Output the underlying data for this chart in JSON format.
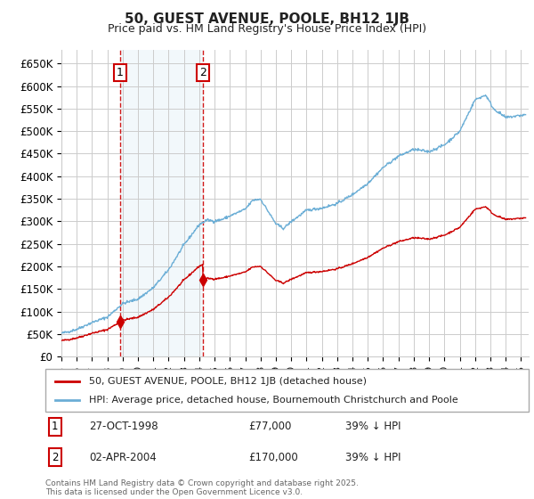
{
  "title": "50, GUEST AVENUE, POOLE, BH12 1JB",
  "subtitle": "Price paid vs. HM Land Registry's House Price Index (HPI)",
  "ylim": [
    0,
    680000
  ],
  "xlim_start": 1995.0,
  "xlim_end": 2025.5,
  "sale1_date": 1998.83,
  "sale1_price": 77000,
  "sale1_label": "1",
  "sale2_date": 2004.25,
  "sale2_price": 170000,
  "sale2_label": "2",
  "legend_line1": "50, GUEST AVENUE, POOLE, BH12 1JB (detached house)",
  "legend_line2": "HPI: Average price, detached house, Bournemouth Christchurch and Poole",
  "table_row1": [
    "1",
    "27-OCT-1998",
    "£77,000",
    "39% ↓ HPI"
  ],
  "table_row2": [
    "2",
    "02-APR-2004",
    "£170,000",
    "39% ↓ HPI"
  ],
  "footer": "Contains HM Land Registry data © Crown copyright and database right 2025.\nThis data is licensed under the Open Government Licence v3.0.",
  "hpi_color": "#6baed6",
  "price_color": "#cc0000",
  "grid_color": "#cccccc",
  "bg_color": "#ffffff",
  "annotation_box_color": "#cc0000",
  "shade_color": "#d6e8f5",
  "dashed_color": "#cc0000"
}
